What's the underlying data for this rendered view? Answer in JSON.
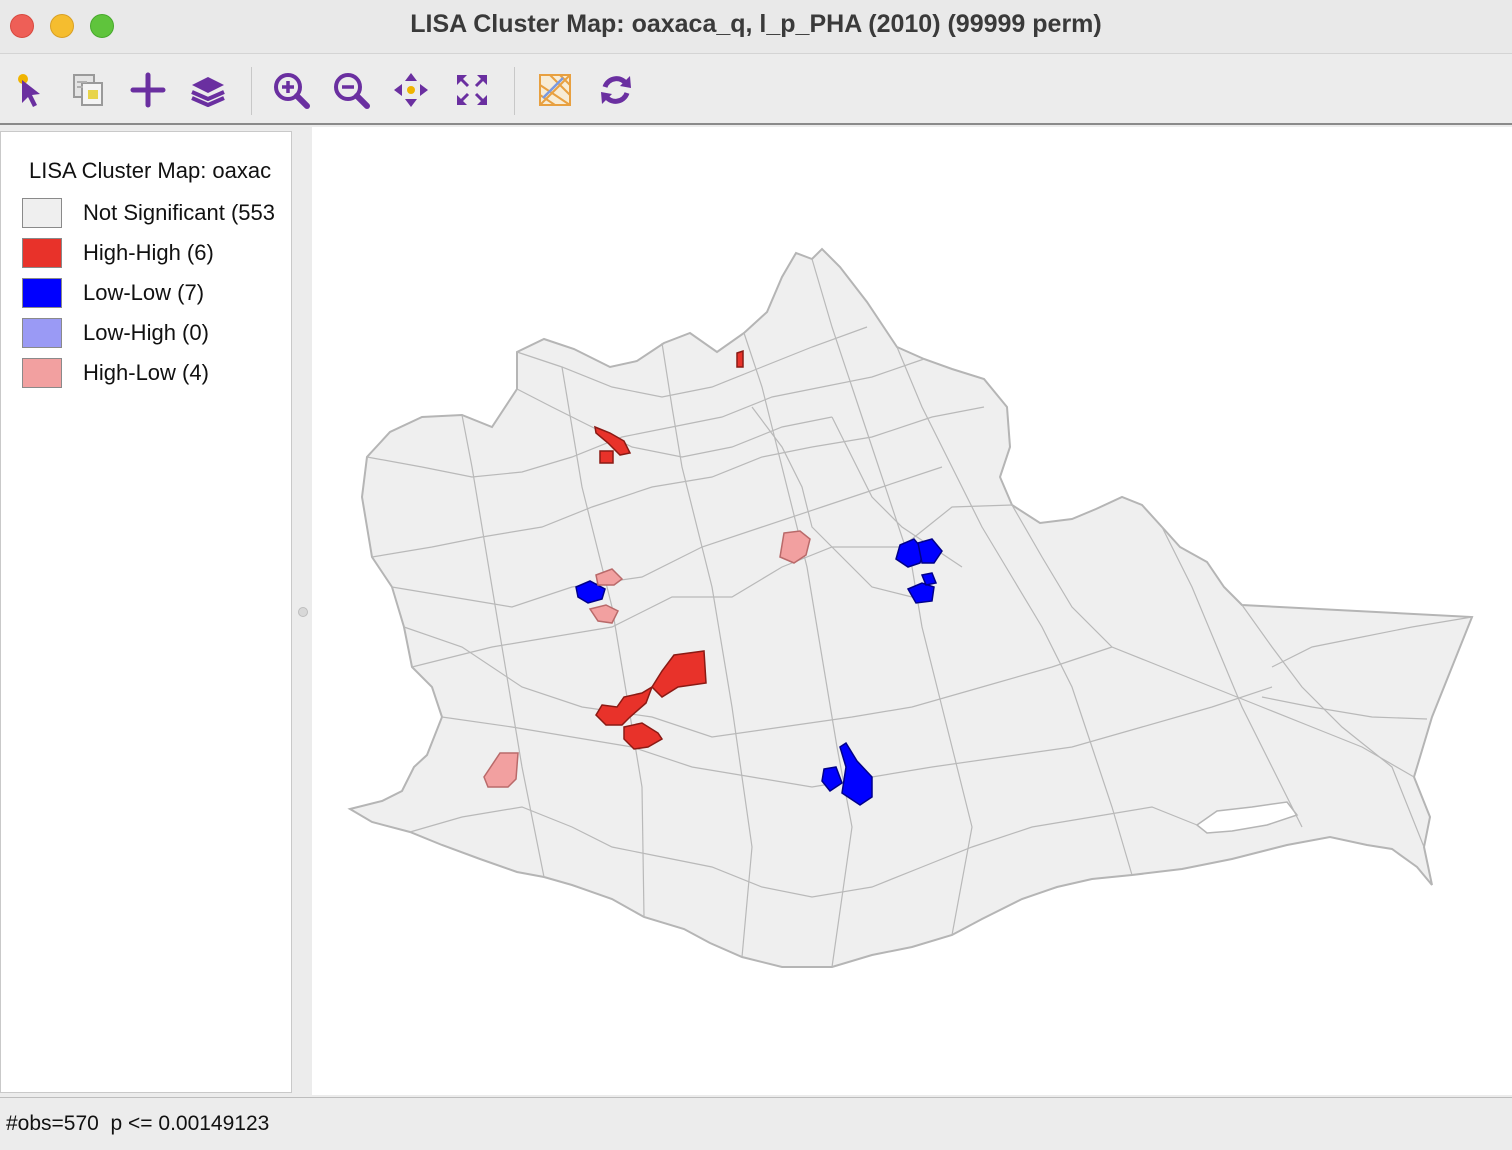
{
  "window": {
    "title": "LISA Cluster Map: oaxaca_q, l_p_PHA (2010) (99999 perm)"
  },
  "toolbar": {
    "tools": [
      {
        "name": "select-tool",
        "icon": "pointer-icon"
      },
      {
        "name": "copy-tool",
        "icon": "copy-image-icon"
      },
      {
        "name": "add-tool",
        "icon": "plus-icon"
      },
      {
        "name": "layers-tool",
        "icon": "layers-icon"
      },
      {
        "name": "zoom-in-tool",
        "icon": "zoom-in-icon"
      },
      {
        "name": "zoom-out-tool",
        "icon": "zoom-out-icon"
      },
      {
        "name": "pan-tool",
        "icon": "pan-icon"
      },
      {
        "name": "full-extent-tool",
        "icon": "full-extent-icon"
      },
      {
        "name": "basemap-tool",
        "icon": "basemap-icon"
      },
      {
        "name": "refresh-tool",
        "icon": "refresh-icon"
      }
    ],
    "icon_color": "#6a2fa0"
  },
  "legend": {
    "title": "LISA Cluster Map: oaxac",
    "items": [
      {
        "label": "Not Significant (553",
        "color": "#efefef"
      },
      {
        "label": "High-High (6)",
        "color": "#e8322a"
      },
      {
        "label": "Low-Low (7)",
        "color": "#0000ff"
      },
      {
        "label": "Low-High (0)",
        "color": "#9a9af5"
      },
      {
        "label": "High-Low (4)",
        "color": "#f2a0a0"
      }
    ]
  },
  "status": {
    "text": "#obs=570  p <= 0.00149123"
  },
  "map": {
    "base_color": "#efefef",
    "boundary_color": "#b5b5b5",
    "clusters": [
      {
        "category": "High-High",
        "count": 6
      },
      {
        "category": "Low-Low",
        "count": 7
      },
      {
        "category": "High-Low",
        "count": 4
      }
    ]
  }
}
